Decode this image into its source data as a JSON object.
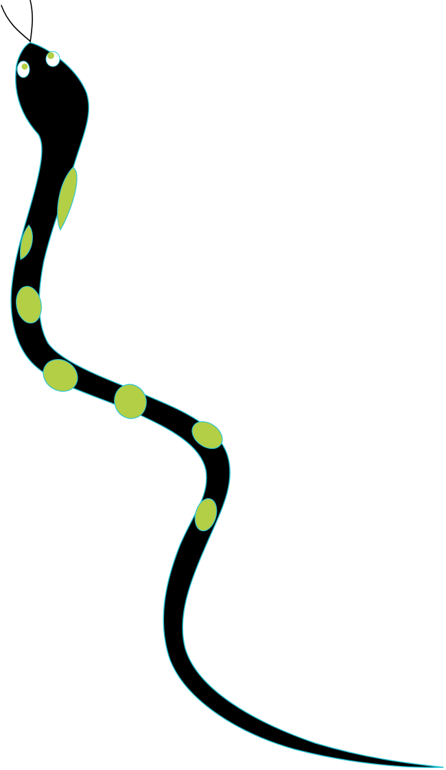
{
  "illustration": {
    "subject": "snake",
    "colors": {
      "background": "#ffffff",
      "body": "#000000",
      "outline": "#29c4d6",
      "spots": "#b3cf45",
      "eye_white": "#ffffff",
      "tongue": "#000000"
    },
    "icons": {
      "snake": "snake-icon",
      "eye": "eye-icon",
      "spot": "spot-shape",
      "tongue": "forked-tongue-icon"
    }
  }
}
